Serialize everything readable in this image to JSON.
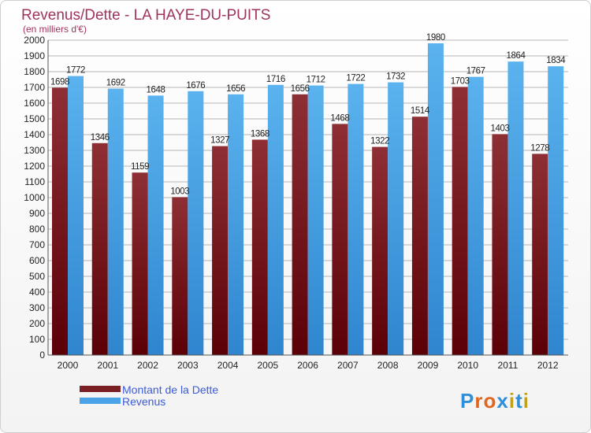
{
  "chart_data": {
    "type": "bar",
    "title": "Revenus/Dette - LA HAYE-DU-PUITS",
    "subtitle": "(en milliers d'€)",
    "categories": [
      "2000",
      "2001",
      "2002",
      "2003",
      "2004",
      "2005",
      "2006",
      "2007",
      "2008",
      "2009",
      "2010",
      "2011",
      "2012"
    ],
    "series": [
      {
        "name": "Montant de la Dette",
        "values": [
          1698,
          1346,
          1159,
          1003,
          1327,
          1368,
          1656,
          1468,
          1322,
          1514,
          1703,
          1403,
          1278
        ]
      },
      {
        "name": "Revenus",
        "values": [
          1772,
          1692,
          1648,
          1676,
          1656,
          1716,
          1712,
          1722,
          1732,
          1980,
          1767,
          1864,
          1834
        ]
      }
    ],
    "data_labels": [
      [
        "1698",
        "1346",
        "1159",
        "1003",
        "1327",
        "1368",
        "1656",
        "1468",
        "1322",
        "1514",
        "1703",
        "1403",
        "1278"
      ],
      [
        "1772",
        "1692",
        "1648",
        "1676",
        "1656",
        "1716",
        "1712",
        "1722",
        "1732",
        "1980",
        "1767",
        "1864",
        "1834"
      ]
    ],
    "yticks": [
      "0",
      "100",
      "200",
      "300",
      "400",
      "500",
      "600",
      "700",
      "800",
      "900",
      "1000",
      "1100",
      "1200",
      "1300",
      "1400",
      "1500",
      "1600",
      "1700",
      "1800",
      "1900",
      "2000"
    ],
    "ylim": [
      0,
      2000
    ],
    "grid": true,
    "legend_position": "bottom-left",
    "colors": {
      "dette": "#7a1f24",
      "revenus": "#4aa3e6",
      "title": "#a0335d",
      "legend_text": "#3b5bd8"
    }
  },
  "watermark": {
    "text": "Proxiti",
    "letter_colors": [
      "#2f8fd8",
      "#e0661f",
      "#e0661f",
      "#2f8fd8",
      "#c2a11a",
      "#2f8fd8",
      "#c2a11a"
    ]
  }
}
